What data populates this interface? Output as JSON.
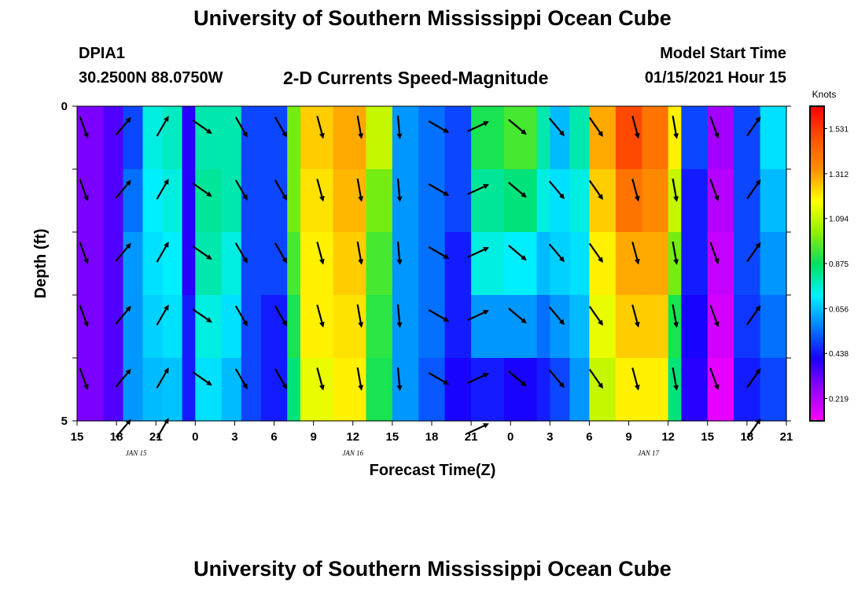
{
  "header": {
    "title": "University of Southern Mississippi Ocean Cube",
    "station_id": "DPIA1",
    "coordinates": "30.2500N 88.0750W",
    "subtitle": "2-D Currents Speed-Magnitude",
    "model_label": "Model Start Time",
    "model_time": "01/15/2021 Hour 15"
  },
  "footer": {
    "title": "University of Southern Mississippi Ocean Cube"
  },
  "chart_data": {
    "type": "heatmap",
    "title": "2-D Currents Speed-Magnitude",
    "xlabel": "Forecast Time(Z)",
    "ylabel": "Depth (ft)",
    "x_tick_labels": [
      "15",
      "18",
      "21",
      "0",
      "3",
      "6",
      "9",
      "12",
      "15",
      "18",
      "21",
      "0",
      "3",
      "6",
      "9",
      "12",
      "15",
      "18",
      "21"
    ],
    "date_labels": [
      {
        "label": "JAN  15",
        "hour": 4.5
      },
      {
        "label": "JAN  16",
        "hour": 21
      },
      {
        "label": "JAN  17",
        "hour": 43.5
      }
    ],
    "xlim": [
      0,
      54
    ],
    "ylim": [
      0,
      5
    ],
    "y_tick_labels": [
      "0",
      "5"
    ],
    "depth_rows": 5,
    "colorbar": {
      "unit": "Knots",
      "min": 0.11,
      "max": 1.64,
      "tick_values": [
        1.531,
        1.312,
        1.094,
        0.875,
        0.656,
        0.438,
        0.219
      ],
      "tick_labels": [
        "1.531",
        "1.312",
        "1.094",
        "0.875",
        "0.656",
        "0.438",
        "0.219"
      ],
      "colors": [
        "#ff00ff",
        "#9a00ff",
        "#1a00ff",
        "#0080ff",
        "#00f0ff",
        "#00e060",
        "#90f000",
        "#ffff00",
        "#ff9000",
        "#ff5000",
        "#ff0000"
      ]
    },
    "speed_columns": [
      {
        "hour": 0,
        "values": [
          0.3,
          0.3,
          0.3,
          0.3,
          0.3,
          0.3
        ]
      },
      {
        "hour": 2,
        "values": [
          0.35,
          0.35,
          0.35,
          0.35,
          0.35,
          0.35
        ]
      },
      {
        "hour": 3.5,
        "values": [
          0.5,
          0.55,
          0.6,
          0.6,
          0.6,
          0.55
        ]
      },
      {
        "hour": 5,
        "values": [
          0.75,
          0.72,
          0.7,
          0.68,
          0.65,
          0.6
        ]
      },
      {
        "hour": 6.5,
        "values": [
          0.78,
          0.75,
          0.72,
          0.7,
          0.66,
          0.6
        ]
      },
      {
        "hour": 8,
        "values": [
          0.4,
          0.4,
          0.4,
          0.45,
          0.45,
          0.45
        ]
      },
      {
        "hour": 9,
        "values": [
          0.8,
          0.82,
          0.8,
          0.75,
          0.7,
          0.6
        ]
      },
      {
        "hour": 11,
        "values": [
          0.8,
          0.8,
          0.75,
          0.7,
          0.65,
          0.55
        ]
      },
      {
        "hour": 12.5,
        "values": [
          0.5,
          0.5,
          0.5,
          0.5,
          0.5,
          0.5
        ]
      },
      {
        "hour": 14,
        "values": [
          0.5,
          0.5,
          0.5,
          0.45,
          0.45,
          0.42
        ]
      },
      {
        "hour": 16,
        "values": [
          1.0,
          1.0,
          0.95,
          0.9,
          0.85,
          0.8
        ]
      },
      {
        "hour": 17,
        "values": [
          1.25,
          1.22,
          1.2,
          1.2,
          1.15,
          1.1
        ]
      },
      {
        "hour": 19.5,
        "values": [
          1.3,
          1.28,
          1.25,
          1.22,
          1.2,
          1.15
        ]
      },
      {
        "hour": 22,
        "values": [
          1.1,
          1.0,
          0.95,
          0.92,
          0.9,
          0.85
        ]
      },
      {
        "hour": 24,
        "values": [
          0.6,
          0.6,
          0.6,
          0.6,
          0.6,
          0.6
        ]
      },
      {
        "hour": 26,
        "values": [
          0.55,
          0.55,
          0.55,
          0.55,
          0.52,
          0.5
        ]
      },
      {
        "hour": 28,
        "values": [
          0.5,
          0.5,
          0.45,
          0.45,
          0.42,
          0.38
        ]
      },
      {
        "hour": 30,
        "values": [
          0.9,
          0.82,
          0.75,
          0.6,
          0.45,
          0.3
        ]
      },
      {
        "hour": 32.5,
        "values": [
          0.95,
          0.85,
          0.72,
          0.6,
          0.42,
          0.28
        ]
      },
      {
        "hour": 35,
        "values": [
          0.8,
          0.75,
          0.65,
          0.55,
          0.45,
          0.3
        ]
      },
      {
        "hour": 36,
        "values": [
          0.65,
          0.7,
          0.68,
          0.6,
          0.5,
          0.4
        ]
      },
      {
        "hour": 37.5,
        "values": [
          0.8,
          0.75,
          0.7,
          0.65,
          0.6,
          0.55
        ]
      },
      {
        "hour": 39,
        "values": [
          1.3,
          1.25,
          1.2,
          1.15,
          1.1,
          0.95
        ]
      },
      {
        "hour": 41,
        "values": [
          1.5,
          1.4,
          1.3,
          1.25,
          1.2,
          1.0
        ]
      },
      {
        "hour": 43,
        "values": [
          1.4,
          1.35,
          1.3,
          1.25,
          1.2,
          0.95
        ]
      },
      {
        "hour": 45,
        "values": [
          1.2,
          1.1,
          1.0,
          0.9,
          0.85,
          0.8
        ]
      },
      {
        "hour": 46,
        "values": [
          0.5,
          0.45,
          0.45,
          0.42,
          0.4,
          0.35
        ]
      },
      {
        "hour": 48,
        "values": [
          0.25,
          0.22,
          0.2,
          0.18,
          0.15,
          0.12
        ]
      },
      {
        "hour": 50,
        "values": [
          0.5,
          0.5,
          0.5,
          0.48,
          0.45,
          0.42
        ]
      },
      {
        "hour": 52,
        "values": [
          0.7,
          0.65,
          0.6,
          0.55,
          0.5,
          0.45
        ]
      },
      {
        "hour": 54,
        "values": [
          0.72,
          0.68,
          0.62,
          0.55,
          0.5,
          0.45
        ]
      }
    ],
    "arrow_depths": [
      0.2,
      1.2,
      2.2,
      3.2,
      4.2
    ],
    "arrows": [
      {
        "hour": 0.5,
        "angle": 160,
        "surface_only": false,
        "extra_bottom": false
      },
      {
        "hour": 3.5,
        "angle": 40,
        "surface_only": false,
        "extra_bottom": true
      },
      {
        "hour": 6.5,
        "angle": 30,
        "surface_only": false,
        "extra_bottom": true
      },
      {
        "hour": 9.5,
        "angle": 125,
        "surface_only": false,
        "extra_bottom": false
      },
      {
        "hour": 12.5,
        "angle": 150,
        "surface_only": false,
        "extra_bottom": false
      },
      {
        "hour": 15.5,
        "angle": 150,
        "surface_only": false,
        "extra_bottom": false
      },
      {
        "hour": 18.5,
        "angle": 165,
        "surface_only": false,
        "extra_bottom": false
      },
      {
        "hour": 21.5,
        "angle": 170,
        "surface_only": false,
        "extra_bottom": false
      },
      {
        "hour": 24.5,
        "angle": 175,
        "surface_only": false,
        "extra_bottom": false
      },
      {
        "hour": 27.5,
        "angle": 120,
        "surface_only": false,
        "extra_bottom": false
      },
      {
        "hour": 30.5,
        "angle": 65,
        "surface_only": false,
        "extra_bottom": true
      },
      {
        "hour": 33.5,
        "angle": 130,
        "surface_only": false,
        "extra_bottom": false
      },
      {
        "hour": 36.5,
        "angle": 140,
        "surface_only": false,
        "extra_bottom": false
      },
      {
        "hour": 39.5,
        "angle": 145,
        "surface_only": false,
        "extra_bottom": false
      },
      {
        "hour": 42.5,
        "angle": 165,
        "surface_only": false,
        "extra_bottom": false
      },
      {
        "hour": 45.5,
        "angle": 170,
        "surface_only": false,
        "extra_bottom": false
      },
      {
        "hour": 48.5,
        "angle": 160,
        "surface_only": false,
        "extra_bottom": false
      },
      {
        "hour": 51.5,
        "angle": 35,
        "surface_only": false,
        "extra_bottom": true
      }
    ]
  }
}
